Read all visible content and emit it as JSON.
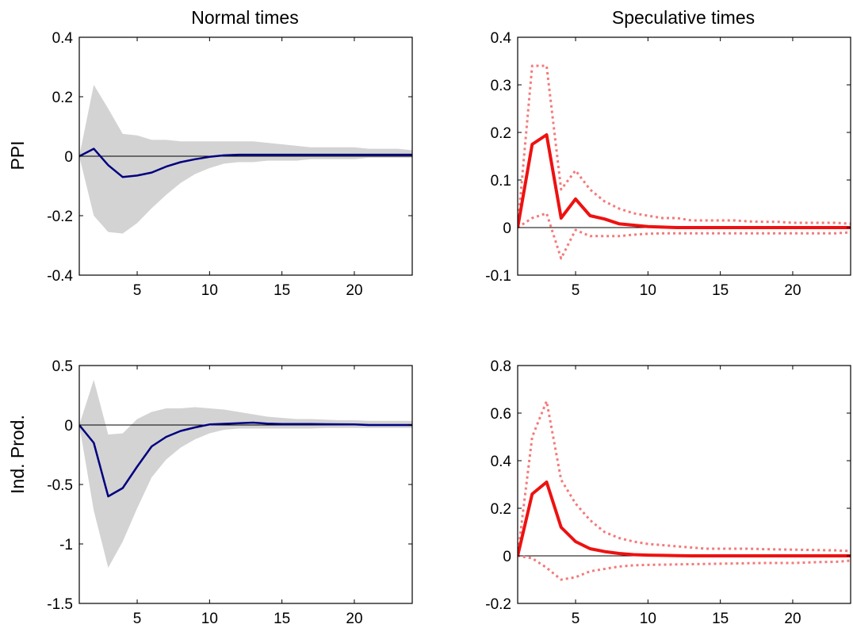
{
  "column_titles": [
    "Normal times",
    "Speculative times"
  ],
  "row_labels": [
    "PPI",
    "Ind. Prod."
  ],
  "colors": {
    "band": "#d3d3d3",
    "normal_line": "#000080",
    "speculative_line": "#ee1111",
    "speculative_bounds": "#f47a7a",
    "zero_line": "#000000"
  },
  "chart_data": [
    {
      "type": "line",
      "title": "Normal times",
      "ylabel": "PPI",
      "xlim": [
        1,
        24
      ],
      "ylim": [
        -0.4,
        0.4
      ],
      "xticks": [
        5,
        10,
        15,
        20
      ],
      "yticks": [
        -0.4,
        -0.2,
        0,
        0.2,
        0.4
      ],
      "ytick_labels": [
        "-0.4",
        "-0.2",
        "0",
        "0.2",
        "0.4"
      ],
      "x": [
        1,
        2,
        3,
        4,
        5,
        6,
        7,
        8,
        9,
        10,
        11,
        12,
        13,
        14,
        15,
        16,
        17,
        18,
        19,
        20,
        21,
        22,
        23,
        24
      ],
      "series": [
        {
          "role": "band",
          "style": "shaded-area",
          "upper": [
            0,
            0.24,
            0.16,
            0.075,
            0.07,
            0.055,
            0.055,
            0.05,
            0.05,
            0.05,
            0.05,
            0.05,
            0.05,
            0.045,
            0.04,
            0.035,
            0.03,
            0.03,
            0.03,
            0.03,
            0.025,
            0.025,
            0.025,
            0.02
          ],
          "lower": [
            0,
            -0.2,
            -0.255,
            -0.26,
            -0.225,
            -0.175,
            -0.13,
            -0.09,
            -0.06,
            -0.04,
            -0.025,
            -0.02,
            -0.02,
            -0.015,
            -0.015,
            -0.015,
            -0.01,
            -0.01,
            -0.01,
            -0.01,
            -0.005,
            -0.005,
            -0.005,
            -0.005
          ]
        },
        {
          "role": "median",
          "style": "solid",
          "values": [
            0,
            0.025,
            -0.03,
            -0.07,
            -0.065,
            -0.055,
            -0.035,
            -0.02,
            -0.01,
            -0.002,
            0.003,
            0.005,
            0.005,
            0.005,
            0.005,
            0.005,
            0.005,
            0.005,
            0.005,
            0.005,
            0.005,
            0.005,
            0.005,
            0.005
          ]
        }
      ]
    },
    {
      "type": "line",
      "title": "Speculative times",
      "ylabel": "",
      "xlim": [
        1,
        24
      ],
      "ylim": [
        -0.1,
        0.4
      ],
      "xticks": [
        5,
        10,
        15,
        20
      ],
      "yticks": [
        -0.1,
        0,
        0.1,
        0.2,
        0.3,
        0.4
      ],
      "ytick_labels": [
        "-0.1",
        "0",
        "0.1",
        "0.2",
        "0.3",
        "0.4"
      ],
      "x": [
        1,
        2,
        3,
        4,
        5,
        6,
        7,
        8,
        9,
        10,
        11,
        12,
        13,
        14,
        15,
        16,
        17,
        18,
        19,
        20,
        21,
        22,
        23,
        24
      ],
      "series": [
        {
          "role": "upper",
          "style": "dotted",
          "values": [
            0,
            0.34,
            0.34,
            0.08,
            0.12,
            0.08,
            0.055,
            0.04,
            0.03,
            0.025,
            0.02,
            0.02,
            0.015,
            0.015,
            0.015,
            0.015,
            0.013,
            0.012,
            0.012,
            0.01,
            0.01,
            0.01,
            0.01,
            0.008
          ]
        },
        {
          "role": "lower",
          "style": "dotted",
          "values": [
            0,
            0.02,
            0.03,
            -0.065,
            -0.005,
            -0.018,
            -0.018,
            -0.018,
            -0.015,
            -0.013,
            -0.012,
            -0.012,
            -0.012,
            -0.012,
            -0.012,
            -0.012,
            -0.012,
            -0.012,
            -0.012,
            -0.012,
            -0.012,
            -0.012,
            -0.012,
            -0.01
          ]
        },
        {
          "role": "median",
          "style": "solid",
          "values": [
            0,
            0.175,
            0.195,
            0.02,
            0.06,
            0.025,
            0.018,
            0.008,
            0.005,
            0.002,
            0.001,
            0,
            0,
            0,
            0,
            0,
            0,
            0,
            0,
            0,
            0,
            0,
            0,
            0
          ]
        }
      ]
    },
    {
      "type": "line",
      "title": "",
      "ylabel": "Ind. Prod.",
      "xlim": [
        1,
        24
      ],
      "ylim": [
        -1.5,
        0.5
      ],
      "xticks": [
        5,
        10,
        15,
        20
      ],
      "yticks": [
        -1.5,
        -1,
        -0.5,
        0,
        0.5
      ],
      "ytick_labels": [
        "-1.5",
        "-1",
        "-0.5",
        "0",
        "0.5"
      ],
      "x": [
        1,
        2,
        3,
        4,
        5,
        6,
        7,
        8,
        9,
        10,
        11,
        12,
        13,
        14,
        15,
        16,
        17,
        18,
        19,
        20,
        21,
        22,
        23,
        24
      ],
      "series": [
        {
          "role": "band",
          "style": "shaded-area",
          "upper": [
            0,
            0.38,
            -0.08,
            -0.07,
            0.05,
            0.11,
            0.14,
            0.14,
            0.15,
            0.14,
            0.13,
            0.11,
            0.09,
            0.07,
            0.06,
            0.05,
            0.05,
            0.045,
            0.04,
            0.04,
            0.035,
            0.035,
            0.035,
            0.035
          ],
          "lower": [
            0,
            -0.72,
            -1.2,
            -0.98,
            -0.7,
            -0.44,
            -0.29,
            -0.19,
            -0.12,
            -0.07,
            -0.04,
            -0.03,
            -0.03,
            -0.03,
            -0.03,
            -0.03,
            -0.03,
            -0.025,
            -0.025,
            -0.025,
            -0.025,
            -0.025,
            -0.025,
            -0.025
          ]
        },
        {
          "role": "median",
          "style": "solid",
          "values": [
            0,
            -0.15,
            -0.6,
            -0.53,
            -0.35,
            -0.18,
            -0.1,
            -0.05,
            -0.02,
            0.005,
            0.01,
            0.015,
            0.02,
            0.012,
            0.008,
            0.008,
            0.008,
            0.007,
            0.006,
            0.005,
            0,
            0,
            0,
            0
          ]
        }
      ]
    },
    {
      "type": "line",
      "title": "",
      "ylabel": "",
      "xlim": [
        1,
        24
      ],
      "ylim": [
        -0.2,
        0.8
      ],
      "xticks": [
        5,
        10,
        15,
        20
      ],
      "yticks": [
        -0.2,
        0,
        0.2,
        0.4,
        0.6,
        0.8
      ],
      "ytick_labels": [
        "-0.2",
        "0",
        "0.2",
        "0.4",
        "0.6",
        "0.8"
      ],
      "x": [
        1,
        2,
        3,
        4,
        5,
        6,
        7,
        8,
        9,
        10,
        11,
        12,
        13,
        14,
        15,
        16,
        17,
        18,
        19,
        20,
        21,
        22,
        23,
        24
      ],
      "series": [
        {
          "role": "upper",
          "style": "dotted",
          "values": [
            0,
            0.5,
            0.65,
            0.32,
            0.22,
            0.15,
            0.1,
            0.075,
            0.06,
            0.05,
            0.045,
            0.04,
            0.035,
            0.03,
            0.03,
            0.03,
            0.03,
            0.028,
            0.027,
            0.026,
            0.025,
            0.024,
            0.023,
            0.02
          ]
        },
        {
          "role": "lower",
          "style": "dotted",
          "values": [
            0,
            -0.01,
            -0.05,
            -0.1,
            -0.09,
            -0.065,
            -0.055,
            -0.045,
            -0.04,
            -0.038,
            -0.037,
            -0.036,
            -0.035,
            -0.034,
            -0.033,
            -0.032,
            -0.031,
            -0.03,
            -0.03,
            -0.03,
            -0.028,
            -0.026,
            -0.025,
            -0.02
          ]
        },
        {
          "role": "median",
          "style": "solid",
          "values": [
            0,
            0.26,
            0.31,
            0.12,
            0.06,
            0.03,
            0.018,
            0.01,
            0.005,
            0.003,
            0.002,
            0.001,
            0,
            0,
            0,
            0,
            0,
            0,
            0,
            0,
            0,
            0,
            0,
            0
          ]
        }
      ]
    }
  ]
}
